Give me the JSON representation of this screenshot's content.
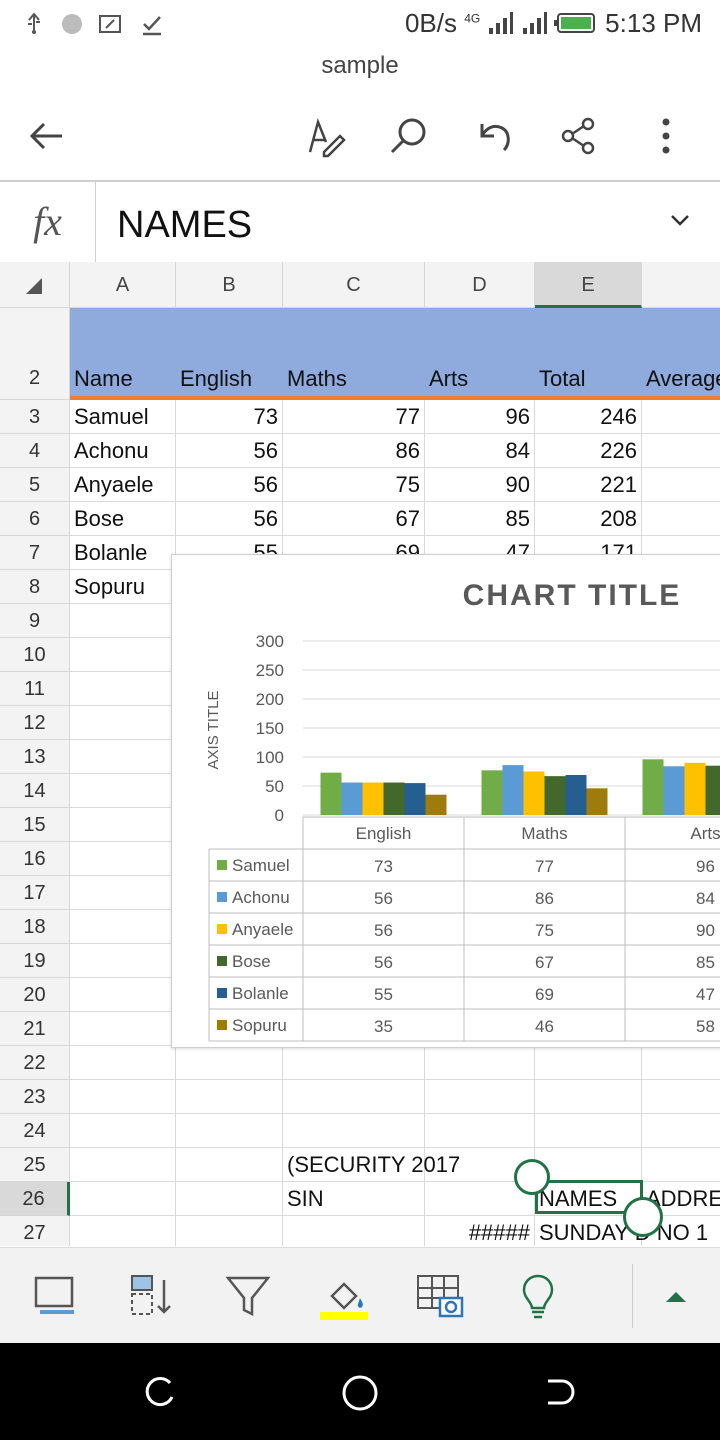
{
  "status": {
    "net": "0B/s",
    "net_badge": "4G",
    "time": "5:13 PM",
    "icons": [
      "usb-icon",
      "dot-icon",
      "cast-icon",
      "check-icon",
      "signal-icon",
      "signal-icon",
      "battery-icon"
    ]
  },
  "doc": {
    "title": "sample"
  },
  "toolbar": {
    "icons": [
      "back-arrow-icon",
      "pen-edit-icon",
      "search-icon",
      "undo-icon",
      "share-icon",
      "more-vert-icon"
    ]
  },
  "formula": {
    "fx": "fx",
    "value": "NAMES"
  },
  "grid": {
    "columns": [
      "A",
      "B",
      "C",
      "D",
      "E"
    ],
    "rows": [
      "2",
      "3",
      "4",
      "5",
      "6",
      "7",
      "8",
      "9",
      "10",
      "11",
      "12",
      "13",
      "14",
      "15",
      "16",
      "17",
      "18",
      "19",
      "20",
      "21",
      "22",
      "23",
      "24",
      "25",
      "26",
      "27"
    ],
    "header": [
      "Name",
      "English",
      "Maths",
      "Arts",
      "Total",
      "Average"
    ],
    "data": [
      [
        "Samuel",
        "73",
        "77",
        "96",
        "246"
      ],
      [
        "Achonu",
        "56",
        "86",
        "84",
        "226"
      ],
      [
        "Anyaele",
        "56",
        "75",
        "90",
        "221"
      ],
      [
        "Bose",
        "56",
        "67",
        "85",
        "208"
      ],
      [
        "Bolanle",
        "55",
        "69",
        "47",
        "171"
      ],
      [
        "Sopuru",
        "",
        "",
        "",
        ""
      ]
    ],
    "r25": {
      "c": "(SECURITY 2017"
    },
    "r26": {
      "c": "SIN",
      "e": "NAMES",
      "f": "ADDRE"
    },
    "r27": {
      "d": "#####",
      "e": "SUNDAY D NO 1"
    }
  },
  "chart_data": {
    "type": "bar",
    "title": "CHART TITLE",
    "ylabel": "AXIS TITLE",
    "ylim": [
      0,
      300
    ],
    "yticks": [
      "300",
      "250",
      "200",
      "150",
      "100",
      "50",
      "0"
    ],
    "categories": [
      "English",
      "Maths",
      "Arts"
    ],
    "series": [
      {
        "name": "Samuel",
        "color": "#70ad47",
        "values": [
          73,
          77,
          96
        ]
      },
      {
        "name": "Achonu",
        "color": "#5b9bd5",
        "values": [
          56,
          86,
          84
        ]
      },
      {
        "name": "Anyaele",
        "color": "#ffc000",
        "values": [
          56,
          75,
          90
        ]
      },
      {
        "name": "Bose",
        "color": "#43682b",
        "values": [
          56,
          67,
          85
        ]
      },
      {
        "name": "Bolanle",
        "color": "#255e91",
        "values": [
          55,
          69,
          47
        ]
      },
      {
        "name": "Sopuru",
        "color": "#9e7c0c",
        "values": [
          35,
          46,
          58
        ]
      }
    ]
  },
  "bottom": {
    "icons": [
      "slide-icon",
      "sort-icon",
      "filter-icon",
      "fill-color-icon",
      "insert-picture-icon",
      "lightbulb-icon",
      "expand-up-icon"
    ]
  }
}
